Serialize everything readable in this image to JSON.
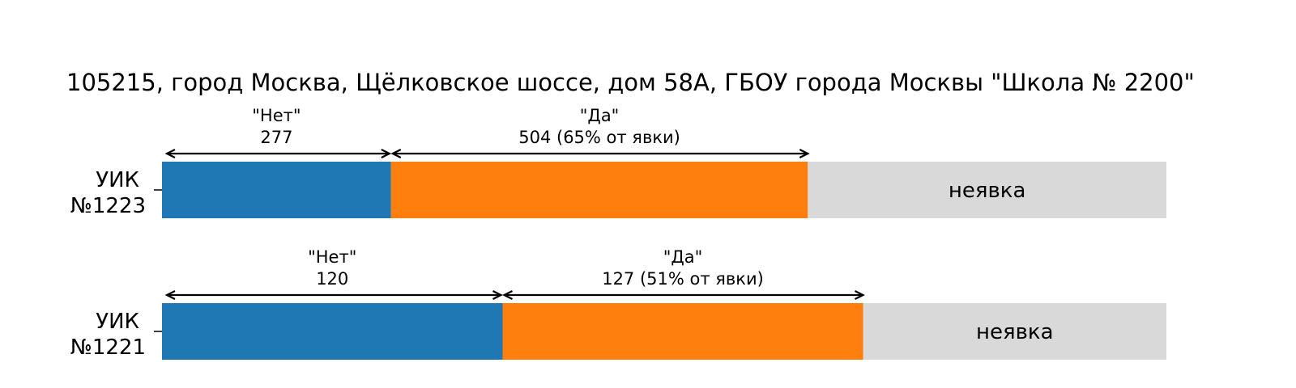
{
  "chart_data": {
    "type": "bar",
    "orientation": "horizontal",
    "stacked": true,
    "title": "105215, город Москва, Щёлковское шоссе, дом 58А, ГБОУ  города Москвы \"Школа № 2200\"",
    "grid": false,
    "colors": {
      "no": "#1f77b4",
      "yes": "#ff7f0e",
      "absent": "#d9d9d9"
    },
    "categories": [
      {
        "label_line1": "УИК",
        "label_line2": "№1223",
        "no": 277,
        "yes": 504,
        "absent_fraction": 0.357,
        "no_label": "\"Нет\"",
        "no_value_label": "277",
        "yes_label": "\"Да\"",
        "yes_value_label": "504 (65% от явки)",
        "absent_label": "неявка"
      },
      {
        "label_line1": "УИК",
        "label_line2": "№1221",
        "no": 120,
        "yes": 127,
        "absent_fraction": 0.302,
        "no_label": "\"Нет\"",
        "no_value_label": "120",
        "yes_label": "\"Да\"",
        "yes_value_label": "127 (51% от явки)",
        "absent_label": "неявка"
      }
    ]
  }
}
